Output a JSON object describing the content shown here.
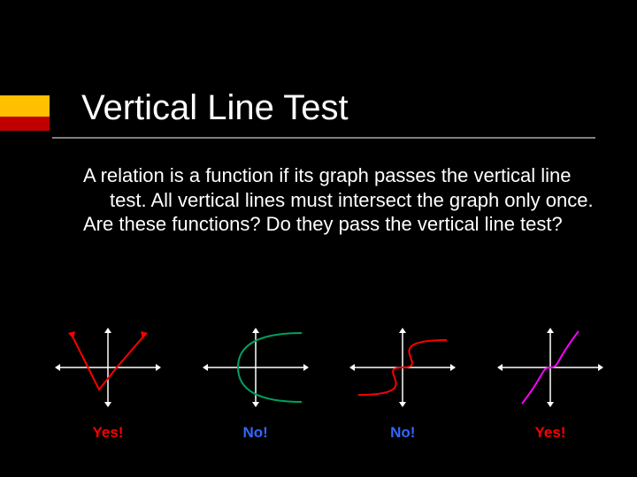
{
  "accent": {
    "top_color": "#ffc000",
    "bottom_color": "#c00000"
  },
  "title": "Vertical Line Test",
  "body": {
    "p1": "A relation is a function if its graph passes the vertical line test.  All vertical lines must intersect the graph only once.",
    "p2": "Are these functions?  Do they pass the vertical line test?"
  },
  "text_color": "#ffffff",
  "graphs": [
    {
      "type": "v-shape",
      "axis_color": "#ffffff",
      "curve_color": "#ff0000",
      "points": [
        [
          -40,
          35
        ],
        [
          -10,
          -25
        ],
        [
          10,
          0
        ],
        [
          40,
          35
        ]
      ],
      "answer": "Yes!",
      "answer_color": "#ff0000"
    },
    {
      "type": "sideways-parabola",
      "axis_color": "#ffffff",
      "curve_color": "#00a060",
      "vertex": [
        -20,
        0
      ],
      "open": "right",
      "answer": "No!",
      "answer_color": "#3366ff"
    },
    {
      "type": "s-sideways",
      "axis_color": "#ffffff",
      "curve_color": "#ff0000",
      "answer": "No!",
      "answer_color": "#3366ff"
    },
    {
      "type": "cubic",
      "axis_color": "#ffffff",
      "curve_color": "#ff00ff",
      "answer": "Yes!",
      "answer_color": "#ff0000"
    }
  ]
}
